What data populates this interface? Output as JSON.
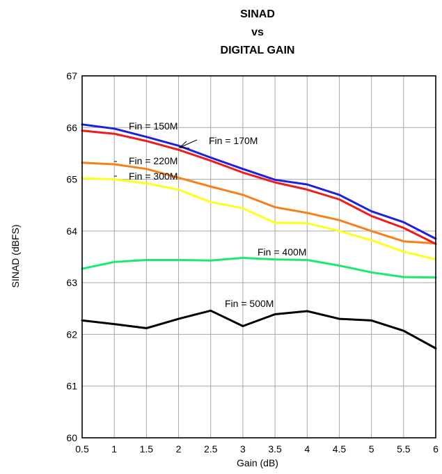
{
  "chart_data": {
    "type": "line",
    "title_lines": [
      "SINAD",
      "vs",
      "DIGITAL GAIN"
    ],
    "xlabel": "Gain (dB)",
    "ylabel": "SINAD (dBFS)",
    "xlim": [
      0.5,
      6
    ],
    "ylim": [
      60,
      67
    ],
    "x_ticks": [
      "0.5",
      "1",
      "1.5",
      "2",
      "2.5",
      "3",
      "3.5",
      "4",
      "4.5",
      "5",
      "5.5",
      "6"
    ],
    "y_ticks": [
      "60",
      "61",
      "62",
      "63",
      "64",
      "65",
      "66",
      "67"
    ],
    "grid": true,
    "x": [
      0.5,
      1,
      1.5,
      2,
      2.5,
      3,
      3.5,
      4,
      4.5,
      5,
      5.5,
      6
    ],
    "series": [
      {
        "name": "Fin = 150M",
        "color": "#1f1fe0",
        "values": [
          66.06,
          65.98,
          65.82,
          65.65,
          65.42,
          65.2,
          64.99,
          64.9,
          64.7,
          64.38,
          64.17,
          63.85
        ]
      },
      {
        "name": "Fin = 170M",
        "color": "#ee1c1c",
        "values": [
          65.94,
          65.88,
          65.74,
          65.57,
          65.36,
          65.13,
          64.94,
          64.8,
          64.61,
          64.29,
          64.06,
          63.75
        ]
      },
      {
        "name": "Fin = 220M",
        "color": "#f7801c",
        "values": [
          65.32,
          65.29,
          65.2,
          65.03,
          64.86,
          64.7,
          64.46,
          64.35,
          64.21,
          64.0,
          63.8,
          63.76
        ]
      },
      {
        "name": "Fin = 300M",
        "color": "#ffff1c",
        "values": [
          65.02,
          65.0,
          64.92,
          64.8,
          64.56,
          64.44,
          64.16,
          64.15,
          64.0,
          63.82,
          63.6,
          63.45
        ]
      },
      {
        "name": "Fin = 400M",
        "color": "#1cea6e",
        "values": [
          63.27,
          63.4,
          63.44,
          63.44,
          63.43,
          63.48,
          63.45,
          63.44,
          63.33,
          63.2,
          63.11,
          63.1
        ]
      },
      {
        "name": "Fin = 500M",
        "color": "#000000",
        "values": [
          62.27,
          62.2,
          62.12,
          62.3,
          62.46,
          62.16,
          62.39,
          62.45,
          62.3,
          62.27,
          62.07,
          61.73
        ]
      }
    ]
  }
}
